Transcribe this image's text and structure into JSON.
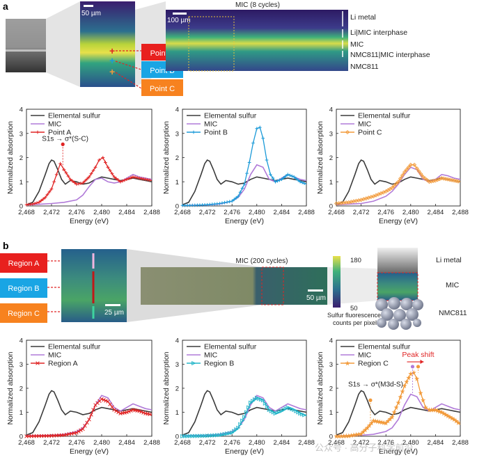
{
  "panels": {
    "a": "a",
    "b": "b"
  },
  "colors": {
    "sulfur": "#3a3a3a",
    "mic": "#b07ad8",
    "pointA": "#e02424",
    "pointB": "#1b9ad8",
    "pointC": "#f29a3a",
    "regionA": "#e02424",
    "regionB": "#22b5c8",
    "regionC": "#f29a3a"
  },
  "top_images": {
    "scale_small": "50 µm",
    "scale_large": "100 µm",
    "map_title": "MIC (8 cycles)",
    "layer_labels": [
      "Li metal",
      "Li|MIC interphase",
      "MIC",
      "NMC811|MIC interphase",
      "NMC811"
    ],
    "point_labels": [
      "Point A",
      "Point B",
      "Point C"
    ]
  },
  "bottom_images": {
    "region_labels": [
      "Region A",
      "Region B",
      "Region C"
    ],
    "scale_zoom": "25 µm",
    "map_title": "MIC (200 cycles)",
    "scale_map": "50 µm",
    "colorbar_max": "180",
    "colorbar_min": "50",
    "colorbar_label_1": "Sulfur fluorescence",
    "colorbar_label_2": "counts per pixel",
    "schematic_labels": [
      "Li metal",
      "MIC",
      "NMC811"
    ]
  },
  "watermark": "公众号 · 高分子科学前沿",
  "chart_data": [
    {
      "type": "line",
      "panel": "a",
      "xlabel": "Energy (eV)",
      "ylabel": "Normalized absorption",
      "xlim": [
        2468,
        2488
      ],
      "ylim": [
        0,
        4
      ],
      "xticks": [
        "2,468",
        "2,472",
        "2,476",
        "2,480",
        "2,484",
        "2,488"
      ],
      "yticks": [
        "0",
        "1",
        "2",
        "3",
        "4"
      ],
      "legend": [
        "Elemental sulfur",
        "MIC",
        "Point A"
      ],
      "annotation": {
        "text": "S1s → σ*(S-C)",
        "x": 2473.8,
        "y": 2.55
      },
      "series": [
        {
          "name": "Elemental sulfur",
          "color_key": "sulfur",
          "x": [
            2468,
            2469,
            2470,
            2471,
            2471.6,
            2472,
            2472.4,
            2473,
            2473.6,
            2474.2,
            2475,
            2476,
            2477,
            2478,
            2479,
            2480,
            2481,
            2482,
            2483,
            2484,
            2485,
            2486,
            2487,
            2488
          ],
          "y": [
            0.05,
            0.15,
            0.6,
            1.3,
            1.75,
            1.9,
            1.85,
            1.5,
            1.1,
            0.9,
            1.05,
            1.0,
            0.9,
            0.95,
            1.1,
            1.2,
            1.15,
            1.1,
            1.05,
            1.1,
            1.15,
            1.1,
            1.05,
            1.0
          ]
        },
        {
          "name": "MIC",
          "color_key": "mic",
          "x": [
            2468,
            2470,
            2472,
            2474,
            2476,
            2477,
            2478,
            2479,
            2480,
            2481,
            2482,
            2483,
            2484,
            2485,
            2486,
            2487,
            2488
          ],
          "y": [
            0.05,
            0.07,
            0.1,
            0.15,
            0.25,
            0.45,
            0.8,
            1.1,
            1.15,
            1.0,
            0.95,
            1.0,
            1.15,
            1.3,
            1.2,
            1.15,
            1.1
          ]
        },
        {
          "name": "Point A",
          "color_key": "pointA",
          "x": [
            2468,
            2469,
            2470,
            2471,
            2472,
            2472.8,
            2473.4,
            2474,
            2475,
            2476,
            2477,
            2478,
            2479,
            2479.6,
            2480.2,
            2481,
            2482,
            2483,
            2484,
            2485,
            2486,
            2487,
            2488
          ],
          "y": [
            0.05,
            0.08,
            0.15,
            0.35,
            0.7,
            1.3,
            1.75,
            1.5,
            1.1,
            0.9,
            0.95,
            1.2,
            1.6,
            1.9,
            2.0,
            1.6,
            1.2,
            1.0,
            1.1,
            1.2,
            1.15,
            1.1,
            1.05
          ]
        }
      ]
    },
    {
      "type": "line",
      "panel": "a",
      "xlabel": "Energy (eV)",
      "ylabel": "Normalized absorption",
      "xlim": [
        2468,
        2488
      ],
      "ylim": [
        0,
        4
      ],
      "xticks": [
        "2,468",
        "2,472",
        "2,476",
        "2,480",
        "2,484",
        "2,488"
      ],
      "yticks": [
        "0",
        "1",
        "2",
        "3",
        "4"
      ],
      "legend": [
        "Elemental sulfur",
        "MIC",
        "Point B"
      ],
      "series": [
        {
          "name": "Elemental sulfur",
          "color_key": "sulfur",
          "x": [
            2468,
            2469,
            2470,
            2471,
            2471.6,
            2472,
            2472.4,
            2473,
            2473.6,
            2474.2,
            2475,
            2476,
            2477,
            2478,
            2479,
            2480,
            2481,
            2482,
            2483,
            2484,
            2485,
            2486,
            2487,
            2488
          ],
          "y": [
            0.05,
            0.15,
            0.6,
            1.3,
            1.75,
            1.9,
            1.85,
            1.5,
            1.1,
            0.9,
            1.05,
            1.0,
            0.9,
            0.95,
            1.1,
            1.2,
            1.15,
            1.1,
            1.05,
            1.1,
            1.15,
            1.1,
            1.05,
            1.0
          ]
        },
        {
          "name": "MIC",
          "color_key": "mic",
          "x": [
            2468,
            2472,
            2474,
            2476,
            2477,
            2478,
            2479,
            2480,
            2481,
            2482,
            2483,
            2484,
            2485,
            2486,
            2487,
            2488
          ],
          "y": [
            0.02,
            0.04,
            0.08,
            0.2,
            0.35,
            0.7,
            1.3,
            1.7,
            1.6,
            1.1,
            1.0,
            1.15,
            1.3,
            1.2,
            1.1,
            1.05
          ]
        },
        {
          "name": "Point B",
          "color_key": "pointB",
          "x": [
            2468,
            2470,
            2472,
            2474,
            2476,
            2477,
            2478,
            2478.8,
            2479.4,
            2480,
            2480.5,
            2481,
            2481.6,
            2482.2,
            2483,
            2484,
            2485,
            2486,
            2487,
            2488
          ],
          "y": [
            0.02,
            0.03,
            0.05,
            0.1,
            0.2,
            0.4,
            0.9,
            1.8,
            2.6,
            3.2,
            3.25,
            2.8,
            1.9,
            1.3,
            1.0,
            1.1,
            1.3,
            1.2,
            1.0,
            0.9
          ]
        }
      ]
    },
    {
      "type": "line",
      "panel": "a",
      "xlabel": "Energy (eV)",
      "ylabel": "Normalized absorption",
      "xlim": [
        2468,
        2488
      ],
      "ylim": [
        0,
        4
      ],
      "xticks": [
        "2,468",
        "2,472",
        "2,476",
        "2,480",
        "2,484",
        "2,488"
      ],
      "yticks": [
        "0",
        "1",
        "2",
        "3",
        "4"
      ],
      "legend": [
        "Elemental sulfur",
        "MIC",
        "Point C"
      ],
      "series": [
        {
          "name": "Elemental sulfur",
          "color_key": "sulfur",
          "x": [
            2468,
            2469,
            2470,
            2471,
            2471.6,
            2472,
            2472.4,
            2473,
            2473.6,
            2474.2,
            2475,
            2476,
            2477,
            2478,
            2479,
            2480,
            2481,
            2482,
            2483,
            2484,
            2485,
            2486,
            2487,
            2488
          ],
          "y": [
            0.05,
            0.15,
            0.6,
            1.3,
            1.75,
            1.9,
            1.85,
            1.5,
            1.1,
            0.9,
            1.05,
            1.0,
            0.9,
            0.95,
            1.1,
            1.2,
            1.15,
            1.1,
            1.05,
            1.1,
            1.15,
            1.1,
            1.05,
            1.0
          ]
        },
        {
          "name": "MIC",
          "color_key": "mic",
          "x": [
            2468,
            2472,
            2474,
            2476,
            2477,
            2478,
            2479,
            2480,
            2481,
            2482,
            2483,
            2484,
            2485,
            2486,
            2487,
            2488
          ],
          "y": [
            0.05,
            0.1,
            0.2,
            0.4,
            0.6,
            0.9,
            1.3,
            1.6,
            1.5,
            1.1,
            1.0,
            1.1,
            1.3,
            1.25,
            1.15,
            1.1
          ]
        },
        {
          "name": "Point C",
          "color_key": "pointC",
          "x": [
            2468,
            2470,
            2472,
            2474,
            2476,
            2477,
            2478,
            2479,
            2480,
            2480.6,
            2481,
            2482,
            2483,
            2484,
            2485,
            2486,
            2487,
            2488
          ],
          "y": [
            0.1,
            0.15,
            0.25,
            0.4,
            0.6,
            0.75,
            1.0,
            1.4,
            1.7,
            1.7,
            1.55,
            1.2,
            1.0,
            1.05,
            1.15,
            1.1,
            1.05,
            1.0
          ]
        }
      ]
    },
    {
      "type": "line",
      "panel": "b",
      "xlabel": "Energy (eV)",
      "ylabel": "Normalized absorption",
      "xlim": [
        2468,
        2488
      ],
      "ylim": [
        0,
        4
      ],
      "xticks": [
        "2,468",
        "2,472",
        "2,476",
        "2,480",
        "2,484",
        "2,488"
      ],
      "yticks": [
        "0",
        "1",
        "2",
        "3",
        "4"
      ],
      "legend": [
        "Elemental sulfur",
        "MIC",
        "Region A"
      ],
      "series": [
        {
          "name": "Elemental sulfur",
          "color_key": "sulfur",
          "x": [
            2468,
            2469,
            2470,
            2471,
            2471.6,
            2472,
            2472.4,
            2473,
            2473.6,
            2474.2,
            2475,
            2476,
            2477,
            2478,
            2479,
            2480,
            2481,
            2482,
            2483,
            2484,
            2485,
            2486,
            2487,
            2488
          ],
          "y": [
            0.05,
            0.15,
            0.6,
            1.3,
            1.75,
            1.9,
            1.85,
            1.5,
            1.1,
            0.9,
            1.05,
            1.0,
            0.9,
            0.95,
            1.1,
            1.2,
            1.15,
            1.1,
            1.05,
            1.1,
            1.15,
            1.1,
            1.05,
            1.0
          ]
        },
        {
          "name": "MIC",
          "color_key": "mic",
          "x": [
            2468,
            2472,
            2474,
            2476,
            2477,
            2478,
            2479,
            2480,
            2481,
            2482,
            2483,
            2484,
            2485,
            2486,
            2487,
            2488
          ],
          "y": [
            0.02,
            0.04,
            0.08,
            0.2,
            0.35,
            0.7,
            1.3,
            1.7,
            1.6,
            1.2,
            1.05,
            1.2,
            1.35,
            1.25,
            1.15,
            1.1
          ]
        },
        {
          "name": "Region A",
          "color_key": "regionA",
          "x": [
            2468,
            2470,
            2472,
            2474,
            2476,
            2477,
            2478,
            2479,
            2480,
            2481,
            2482,
            2483,
            2484,
            2485,
            2486,
            2487,
            2488
          ],
          "y": [
            0.0,
            0.01,
            0.02,
            0.05,
            0.15,
            0.3,
            0.7,
            1.3,
            1.55,
            1.45,
            1.1,
            0.95,
            1.0,
            1.1,
            1.05,
            0.95,
            0.9
          ]
        }
      ]
    },
    {
      "type": "line",
      "panel": "b",
      "xlabel": "Energy (eV)",
      "ylabel": "Normalized absorption",
      "xlim": [
        2468,
        2488
      ],
      "ylim": [
        0,
        4
      ],
      "xticks": [
        "2,468",
        "2,472",
        "2,476",
        "2,480",
        "2,484",
        "2,488"
      ],
      "yticks": [
        "0",
        "1",
        "2",
        "3",
        "4"
      ],
      "legend": [
        "Elemental sulfur",
        "MIC",
        "Region B"
      ],
      "series": [
        {
          "name": "Elemental sulfur",
          "color_key": "sulfur",
          "x": [
            2468,
            2469,
            2470,
            2471,
            2471.6,
            2472,
            2472.4,
            2473,
            2473.6,
            2474.2,
            2475,
            2476,
            2477,
            2478,
            2479,
            2480,
            2481,
            2482,
            2483,
            2484,
            2485,
            2486,
            2487,
            2488
          ],
          "y": [
            0.05,
            0.15,
            0.6,
            1.3,
            1.75,
            1.9,
            1.85,
            1.5,
            1.1,
            0.9,
            1.05,
            1.0,
            0.9,
            0.95,
            1.1,
            1.2,
            1.15,
            1.1,
            1.05,
            1.1,
            1.15,
            1.1,
            1.05,
            1.0
          ]
        },
        {
          "name": "MIC",
          "color_key": "mic",
          "x": [
            2468,
            2472,
            2474,
            2476,
            2477,
            2478,
            2479,
            2480,
            2481,
            2482,
            2483,
            2484,
            2485,
            2486,
            2487,
            2488
          ],
          "y": [
            0.02,
            0.04,
            0.08,
            0.2,
            0.35,
            0.7,
            1.3,
            1.7,
            1.6,
            1.2,
            1.05,
            1.2,
            1.35,
            1.25,
            1.15,
            1.1
          ]
        },
        {
          "name": "Region B",
          "color_key": "regionB",
          "x": [
            2468,
            2470,
            2472,
            2474,
            2476,
            2477,
            2478,
            2479,
            2480,
            2481,
            2482,
            2483,
            2484,
            2485,
            2486,
            2487,
            2488
          ],
          "y": [
            0.0,
            0.01,
            0.02,
            0.05,
            0.15,
            0.35,
            0.8,
            1.4,
            1.6,
            1.5,
            1.1,
            0.95,
            1.05,
            1.2,
            1.1,
            0.95,
            0.85
          ]
        }
      ]
    },
    {
      "type": "line",
      "panel": "b",
      "xlabel": "Energy (eV)",
      "ylabel": "Normalized absorption",
      "xlim": [
        2468,
        2488
      ],
      "ylim": [
        0,
        4
      ],
      "xticks": [
        "2,468",
        "2,472",
        "2,476",
        "2,480",
        "2,484",
        "2,488"
      ],
      "yticks": [
        "0",
        "1",
        "2",
        "3",
        "4"
      ],
      "legend": [
        "Elemental sulfur",
        "MIC",
        "Region C"
      ],
      "annotations": [
        {
          "text": "S1s → σ*(M3d-S)",
          "x": 2473.5,
          "y": 1.9
        },
        {
          "text": "Peak shift",
          "x": 2481.2,
          "y": 3.2
        }
      ],
      "series": [
        {
          "name": "Elemental sulfur",
          "color_key": "sulfur",
          "x": [
            2468,
            2469,
            2470,
            2471,
            2471.6,
            2472,
            2472.4,
            2473,
            2473.6,
            2474.2,
            2475,
            2476,
            2477,
            2478,
            2479,
            2480,
            2481,
            2482,
            2483,
            2484,
            2485,
            2486,
            2487,
            2488
          ],
          "y": [
            0.05,
            0.15,
            0.6,
            1.3,
            1.75,
            1.9,
            1.85,
            1.5,
            1.1,
            0.9,
            1.05,
            1.0,
            0.9,
            0.95,
            1.1,
            1.2,
            1.15,
            1.1,
            1.05,
            1.1,
            1.15,
            1.1,
            1.05,
            1.0
          ]
        },
        {
          "name": "MIC",
          "color_key": "mic",
          "x": [
            2468,
            2472,
            2474,
            2476,
            2477,
            2478,
            2479,
            2480,
            2481,
            2482,
            2483,
            2484,
            2485,
            2486,
            2487,
            2488
          ],
          "y": [
            0.02,
            0.04,
            0.08,
            0.2,
            0.35,
            0.7,
            1.3,
            1.75,
            1.65,
            1.2,
            1.05,
            1.2,
            1.35,
            1.25,
            1.15,
            1.1
          ]
        },
        {
          "name": "Region C",
          "color_key": "regionC",
          "x": [
            2468,
            2470,
            2472,
            2473,
            2474,
            2475,
            2476,
            2477,
            2478,
            2479,
            2480,
            2480.5,
            2481,
            2481.6,
            2482.4,
            2483,
            2484,
            2485,
            2486,
            2487,
            2488
          ],
          "y": [
            0.0,
            0.02,
            0.1,
            0.35,
            0.65,
            0.6,
            0.55,
            0.8,
            1.4,
            2.1,
            2.6,
            2.65,
            2.4,
            1.8,
            1.2,
            1.1,
            1.1,
            1.0,
            0.85,
            0.7,
            0.5
          ]
        }
      ]
    }
  ]
}
